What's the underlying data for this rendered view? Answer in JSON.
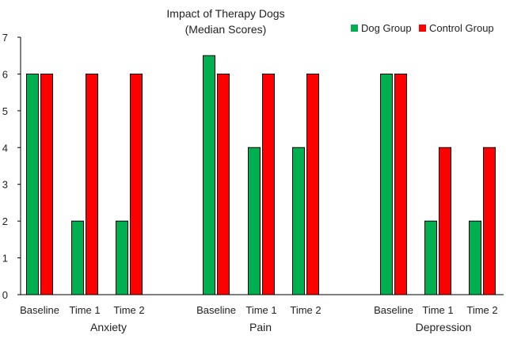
{
  "chart_data": {
    "type": "bar",
    "title": "Impact of Therapy Dogs",
    "subtitle": "(Median Scores)",
    "xlabel": "",
    "ylabel": "",
    "ylim": [
      0,
      7
    ],
    "yticks": [
      0,
      1,
      2,
      3,
      4,
      5,
      6,
      7
    ],
    "grid": false,
    "legend_position": "top-right",
    "groups": [
      "Anxiety",
      "Pain",
      "Depression"
    ],
    "categories": [
      "Baseline",
      "Time 1",
      "Time 2",
      "Baseline",
      "Time 1",
      "Time 2",
      "Baseline",
      "Time 1",
      "Time 2"
    ],
    "series": [
      {
        "name": "Dog Group",
        "color": "#00B050",
        "values": [
          6,
          2,
          2,
          6.5,
          4,
          4,
          6,
          2,
          2
        ]
      },
      {
        "name": "Control Group",
        "color": "#FF0000",
        "values": [
          6,
          6,
          6,
          6,
          6,
          6,
          6,
          4,
          4
        ]
      }
    ]
  }
}
